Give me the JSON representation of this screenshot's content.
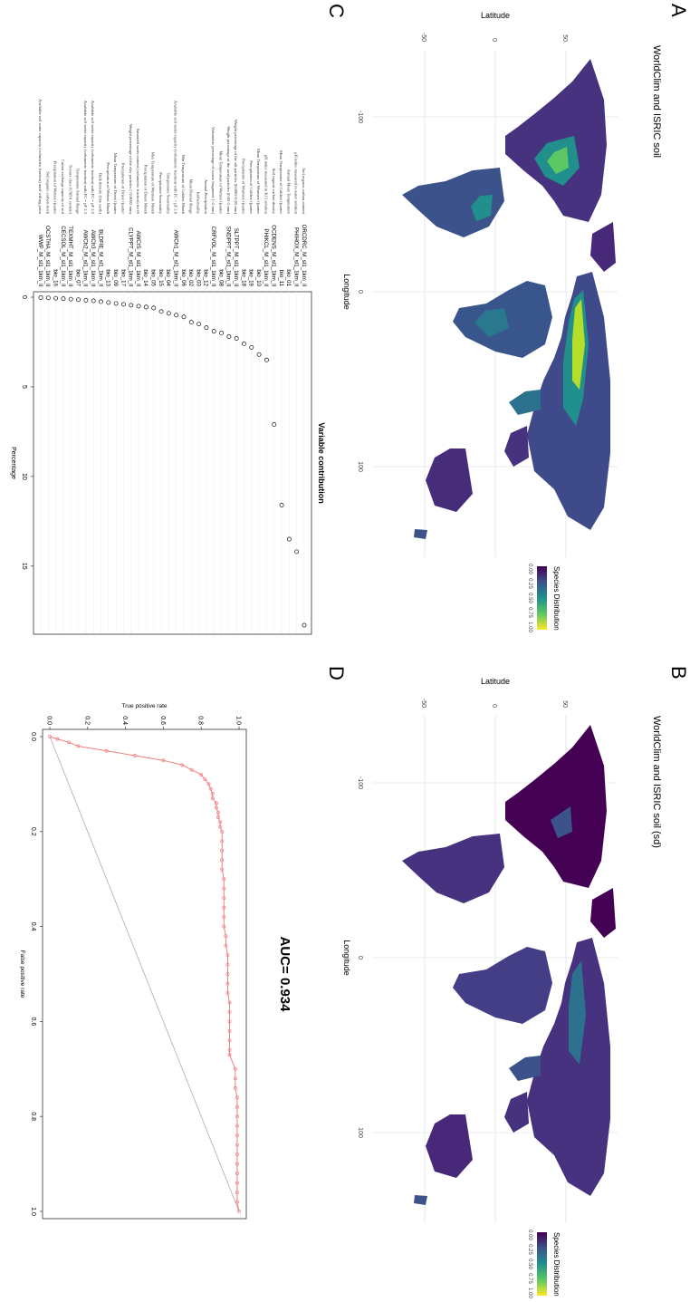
{
  "panels": {
    "A": {
      "letter": "A",
      "title": "WorldClim and ISRIC soil",
      "xlabel": "Longitude",
      "ylabel": "Latitude",
      "lon_ticks": [
        "-100",
        "0",
        "100"
      ],
      "lat_ticks": [
        "-50",
        "0",
        "50"
      ],
      "legend_title": "Species Distribution",
      "legend_ticks": [
        "0.00",
        "0.25",
        "0.50",
        "0.75",
        "1.00"
      ]
    },
    "B": {
      "letter": "B",
      "title": "WorldClim and ISRIC soil (sd)",
      "xlabel": "Longitude",
      "ylabel": "Latitude",
      "lon_ticks": [
        "-100",
        "0",
        "100"
      ],
      "lat_ticks": [
        "-50",
        "0",
        "50"
      ],
      "legend_title": "Species Distribution",
      "legend_ticks": [
        "0.00",
        "0.25",
        "0.50",
        "0.75",
        "1.00"
      ]
    },
    "C": {
      "letter": "C"
    },
    "D": {
      "letter": "D"
    }
  },
  "colors": {
    "viridis": [
      "#440154",
      "#3b528b",
      "#21908d",
      "#5dc863",
      "#fde725"
    ],
    "roc_line": "#f08080",
    "diagonal": "#bbbbbb"
  },
  "chart_data": [
    {
      "type": "scatter",
      "panel": "C",
      "title": "Variable contribution",
      "xlabel": "Percentage",
      "ylabel": "",
      "xlim": [
        0,
        18.5
      ],
      "x_ticks": [
        0,
        5,
        10,
        15
      ],
      "grid": true,
      "variables": [
        {
          "code": "ORCDRC_M_sl1_1km_ll",
          "desc": "Soil organic carbon content",
          "value": 18.3
        },
        {
          "code": "PHIHOX_M_sl1_1km_ll",
          "desc": "pH index measured in water solution",
          "value": 14.2
        },
        {
          "code": "bio_01",
          "desc": "Annual Mean Temperature",
          "value": 13.5
        },
        {
          "code": "bio_11",
          "desc": "Mean Temperature of Coldest Quarter",
          "value": 11.6
        },
        {
          "code": "OCDENS_M_sl1_1km_ll",
          "desc": "Soil organic carbon density",
          "value": 7.1
        },
        {
          "code": "PHIKCL_M_sl1_1km_ll",
          "desc": "pH index measured in KCl solution",
          "value": 3.5
        },
        {
          "code": "bio_10",
          "desc": "Mean Temperature of Warmest Quarter",
          "value": 3.2
        },
        {
          "code": "bio_19",
          "desc": "Precipitation of Coldest Quarter",
          "value": 2.8
        },
        {
          "code": "bio_18",
          "desc": "Precipitation of Warmest Quarter",
          "value": 2.6
        },
        {
          "code": "SLTPPT_M_sl1_1km_ll",
          "desc": "Weight percentage of the silt particles (0.0002-0.05 mm)",
          "value": 2.3
        },
        {
          "code": "SNDPPT_M_sl1_1km_ll",
          "desc": "Weight percentage of the sand particles (0.05-2 mm)",
          "value": 2.2
        },
        {
          "code": "bio_08",
          "desc": "Mean Temperature of Wettest Quarter",
          "value": 2.0
        },
        {
          "code": "CRFVOL_M_sl1_1km_ll",
          "desc": "Volumetric percentage of coarse fragments (>2 mm)",
          "value": 1.9
        },
        {
          "code": "bio_12",
          "desc": "Annual Precipitation",
          "value": 1.7
        },
        {
          "code": "bio_03",
          "desc": "Isothermality",
          "value": 1.5
        },
        {
          "code": "bio_02",
          "desc": "Mean Diurnal Range",
          "value": 1.4
        },
        {
          "code": "bio_06",
          "desc": "Min Temperature of Coldest Month",
          "value": 1.1
        },
        {
          "code": "AWCh1_M_sl1_1km_ll",
          "desc": "Available soil water capacity (volumetric fraction) with FC = pF 2.0",
          "value": 1.0
        },
        {
          "code": "bio_04",
          "desc": "Temperature Seasonality",
          "value": 0.9
        },
        {
          "code": "bio_15",
          "desc": "Precipitation Seasonality",
          "value": 0.8
        },
        {
          "code": "bio_05",
          "desc": "Max Temperature of Warmest Month",
          "value": 0.6
        },
        {
          "code": "bio_14",
          "desc": "Precipitation of Driest Month",
          "value": 0.55
        },
        {
          "code": "AWCtS_M_sl1_1km_ll",
          "desc": "Saturated water content (volumetric fraction) for tS",
          "value": 0.5
        },
        {
          "code": "CLYPPT_M_sl1_1km_ll",
          "desc": "Weight percentage of the clay particles (<0.0002 mm)",
          "value": 0.45
        },
        {
          "code": "bio_17",
          "desc": "Precipitation of Driest Quarter",
          "value": 0.4
        },
        {
          "code": "bio_09",
          "desc": "Mean Temperature of Driest Quarter",
          "value": 0.35
        },
        {
          "code": "bio_13",
          "desc": "Precipitation of Wettest Month",
          "value": 0.3
        },
        {
          "code": "BLDFIE_M_sl1_1km_ll",
          "desc": "Bulk density (fine earth)",
          "value": 0.25
        },
        {
          "code": "AWCh3_M_sl1_1km_ll",
          "desc": "Available soil water capacity (volumetric fraction) with FC = pF 2.5",
          "value": 0.2
        },
        {
          "code": "AWCh2_M_sl1_1km_ll",
          "desc": "Available soil water capacity (volumetric fraction) with FC = pF 2.3",
          "value": 0.17
        },
        {
          "code": "bio_07",
          "desc": "Temperature Annual Range",
          "value": 0.14
        },
        {
          "code": "TEXMHT_M_sl1_1km_ll",
          "desc": "Texture class (USDA system)",
          "value": 0.11
        },
        {
          "code": "CECSOL_M_sl1_1km_ll",
          "desc": "Cation exchange capacity of soil",
          "value": 0.08
        },
        {
          "code": "bio_16",
          "desc": "Precipitation of Wettest Quarter",
          "value": 0.06
        },
        {
          "code": "OCSTHA_M_sl1_1km_ll",
          "desc": "Soil organic carbon stock",
          "value": 0.04
        },
        {
          "code": "WWP_M_sl1_1km_ll",
          "desc": "Available soil water capacity (volumetric fraction) until wilting point",
          "value": 0.02
        }
      ]
    },
    {
      "type": "line",
      "panel": "D",
      "title": "AUC= 0.934",
      "xlabel": "False positive rate",
      "ylabel": "True positive rate",
      "xlim": [
        0,
        1
      ],
      "ylim": [
        0,
        1
      ],
      "x_ticks": [
        "0.0",
        "0.2",
        "0.4",
        "0.6",
        "0.8",
        "1.0"
      ],
      "y_ticks": [
        "0.0",
        "0.2",
        "0.4",
        "0.6",
        "0.8",
        "1.0"
      ],
      "series": [
        {
          "x": [
            0,
            0.005,
            0.012,
            0.02,
            0.03,
            0.04,
            0.05,
            0.06,
            0.07,
            0.08,
            0.09,
            0.1,
            0.11,
            0.12,
            0.13,
            0.14,
            0.15,
            0.16,
            0.17,
            0.18,
            0.19,
            0.2,
            0.22,
            0.24,
            0.26,
            0.28,
            0.3,
            0.32,
            0.34,
            0.36,
            0.38,
            0.4,
            0.42,
            0.44,
            0.46,
            0.48,
            0.5,
            0.52,
            0.54,
            0.56,
            0.58,
            0.6,
            0.62,
            0.64,
            0.66,
            0.67,
            0.7,
            0.72,
            0.74,
            0.76,
            0.78,
            0.8,
            0.82,
            0.84,
            0.86,
            0.88,
            0.9,
            0.92,
            0.94,
            0.96,
            0.98,
            1.0
          ],
          "y": [
            0,
            0.04,
            0.1,
            0.15,
            0.3,
            0.45,
            0.6,
            0.7,
            0.75,
            0.8,
            0.82,
            0.84,
            0.85,
            0.86,
            0.86,
            0.88,
            0.88,
            0.89,
            0.89,
            0.9,
            0.9,
            0.91,
            0.91,
            0.91,
            0.91,
            0.91,
            0.92,
            0.92,
            0.92,
            0.92,
            0.92,
            0.92,
            0.93,
            0.93,
            0.94,
            0.94,
            0.94,
            0.94,
            0.94,
            0.95,
            0.95,
            0.95,
            0.95,
            0.95,
            0.95,
            0.95,
            0.98,
            0.98,
            0.98,
            0.99,
            0.99,
            0.99,
            0.99,
            0.99,
            0.99,
            0.99,
            0.99,
            0.99,
            0.99,
            0.99,
            0.99,
            1.0
          ]
        }
      ]
    }
  ]
}
